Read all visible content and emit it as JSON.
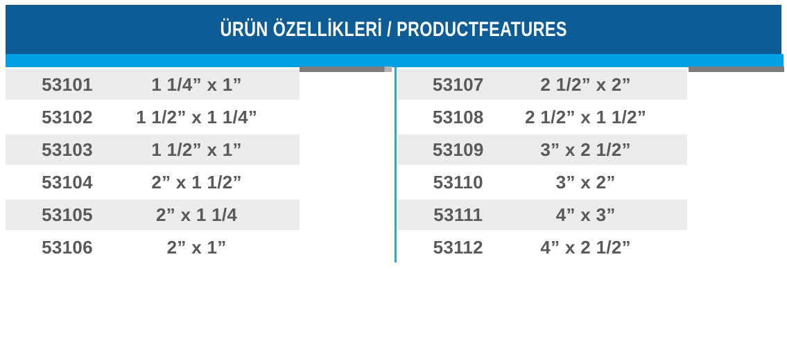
{
  "header": {
    "title": "ÜRÜN ÖZELLİKLERİ / PRODUCTFEATURES"
  },
  "colors": {
    "header-bg": "#0d5c95",
    "title-text": "#fbfdfe",
    "accent-bar": "#009fe3",
    "divider": "#2ba6d9",
    "strip-gray": "#7c7c7c",
    "strip-gray-light": "#b3b3b3",
    "row-alt-bg": "#ebeced",
    "text": "#58595b"
  },
  "tables": {
    "left": {
      "rows": [
        {
          "code": "53101",
          "size": "1 1/4” x 1”"
        },
        {
          "code": "53102",
          "size": "1 1/2” x 1 1/4”"
        },
        {
          "code": "53103",
          "size": "1 1/2” x 1”"
        },
        {
          "code": "53104",
          "size": "2” x 1 1/2”"
        },
        {
          "code": "53105",
          "size": "2” x 1 1/4"
        },
        {
          "code": "53106",
          "size": "2” x 1”"
        }
      ]
    },
    "right": {
      "rows": [
        {
          "code": "53107",
          "size": "2 1/2” x 2”"
        },
        {
          "code": "53108",
          "size": "2 1/2” x 1 1/2”"
        },
        {
          "code": "53109",
          "size": "3” x 2 1/2”"
        },
        {
          "code": "53110",
          "size": "3” x 2”"
        },
        {
          "code": "53111",
          "size": "4” x 3”"
        },
        {
          "code": "53112",
          "size": "4” x 2 1/2”"
        }
      ]
    }
  }
}
